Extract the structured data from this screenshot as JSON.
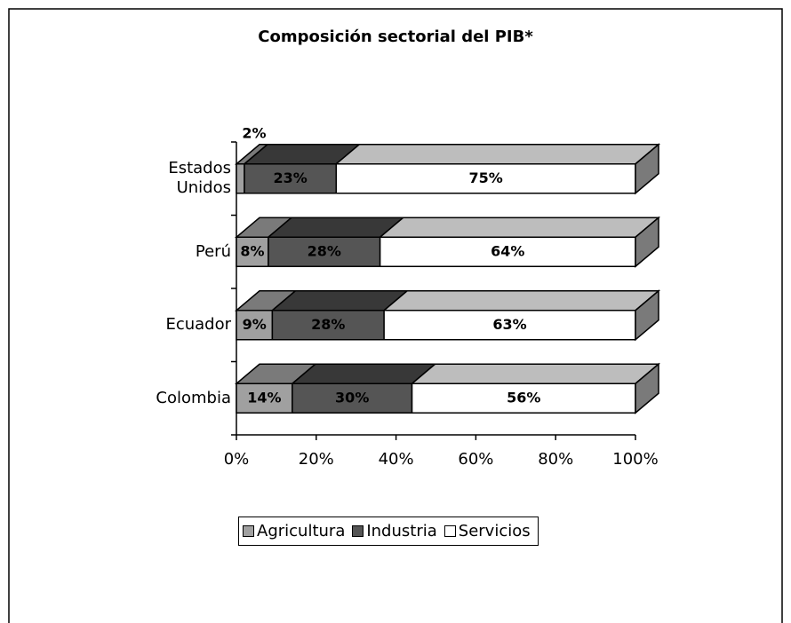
{
  "chart_data": {
    "type": "stacked-bar-3d",
    "orientation": "horizontal",
    "title": "Composición sectorial del PIB*",
    "categories": [
      "Estados Unidos",
      "Perú",
      "Ecuador",
      "Colombia"
    ],
    "series": [
      {
        "name": "Agricultura",
        "color": "#a0a0a0",
        "values": [
          2,
          8,
          9,
          14
        ],
        "value_labels": [
          "2%",
          "8%",
          "9%",
          "14%"
        ]
      },
      {
        "name": "Industria",
        "color": "#555555",
        "values": [
          23,
          28,
          28,
          30
        ],
        "value_labels": [
          "23%",
          "28%",
          "28%",
          "30%"
        ]
      },
      {
        "name": "Servicios",
        "color": "#ffffff",
        "values": [
          75,
          64,
          63,
          56
        ],
        "value_labels": [
          "75%",
          "64%",
          "63%",
          "56%"
        ]
      }
    ],
    "xlim": [
      0,
      100
    ],
    "xticks": [
      {
        "value": 0,
        "label": "0%"
      },
      {
        "value": 20,
        "label": "20%"
      },
      {
        "value": 40,
        "label": "40%"
      },
      {
        "value": 60,
        "label": "60%"
      },
      {
        "value": 80,
        "label": "80%"
      },
      {
        "value": 100,
        "label": "100%"
      }
    ],
    "legend": "bottom"
  }
}
